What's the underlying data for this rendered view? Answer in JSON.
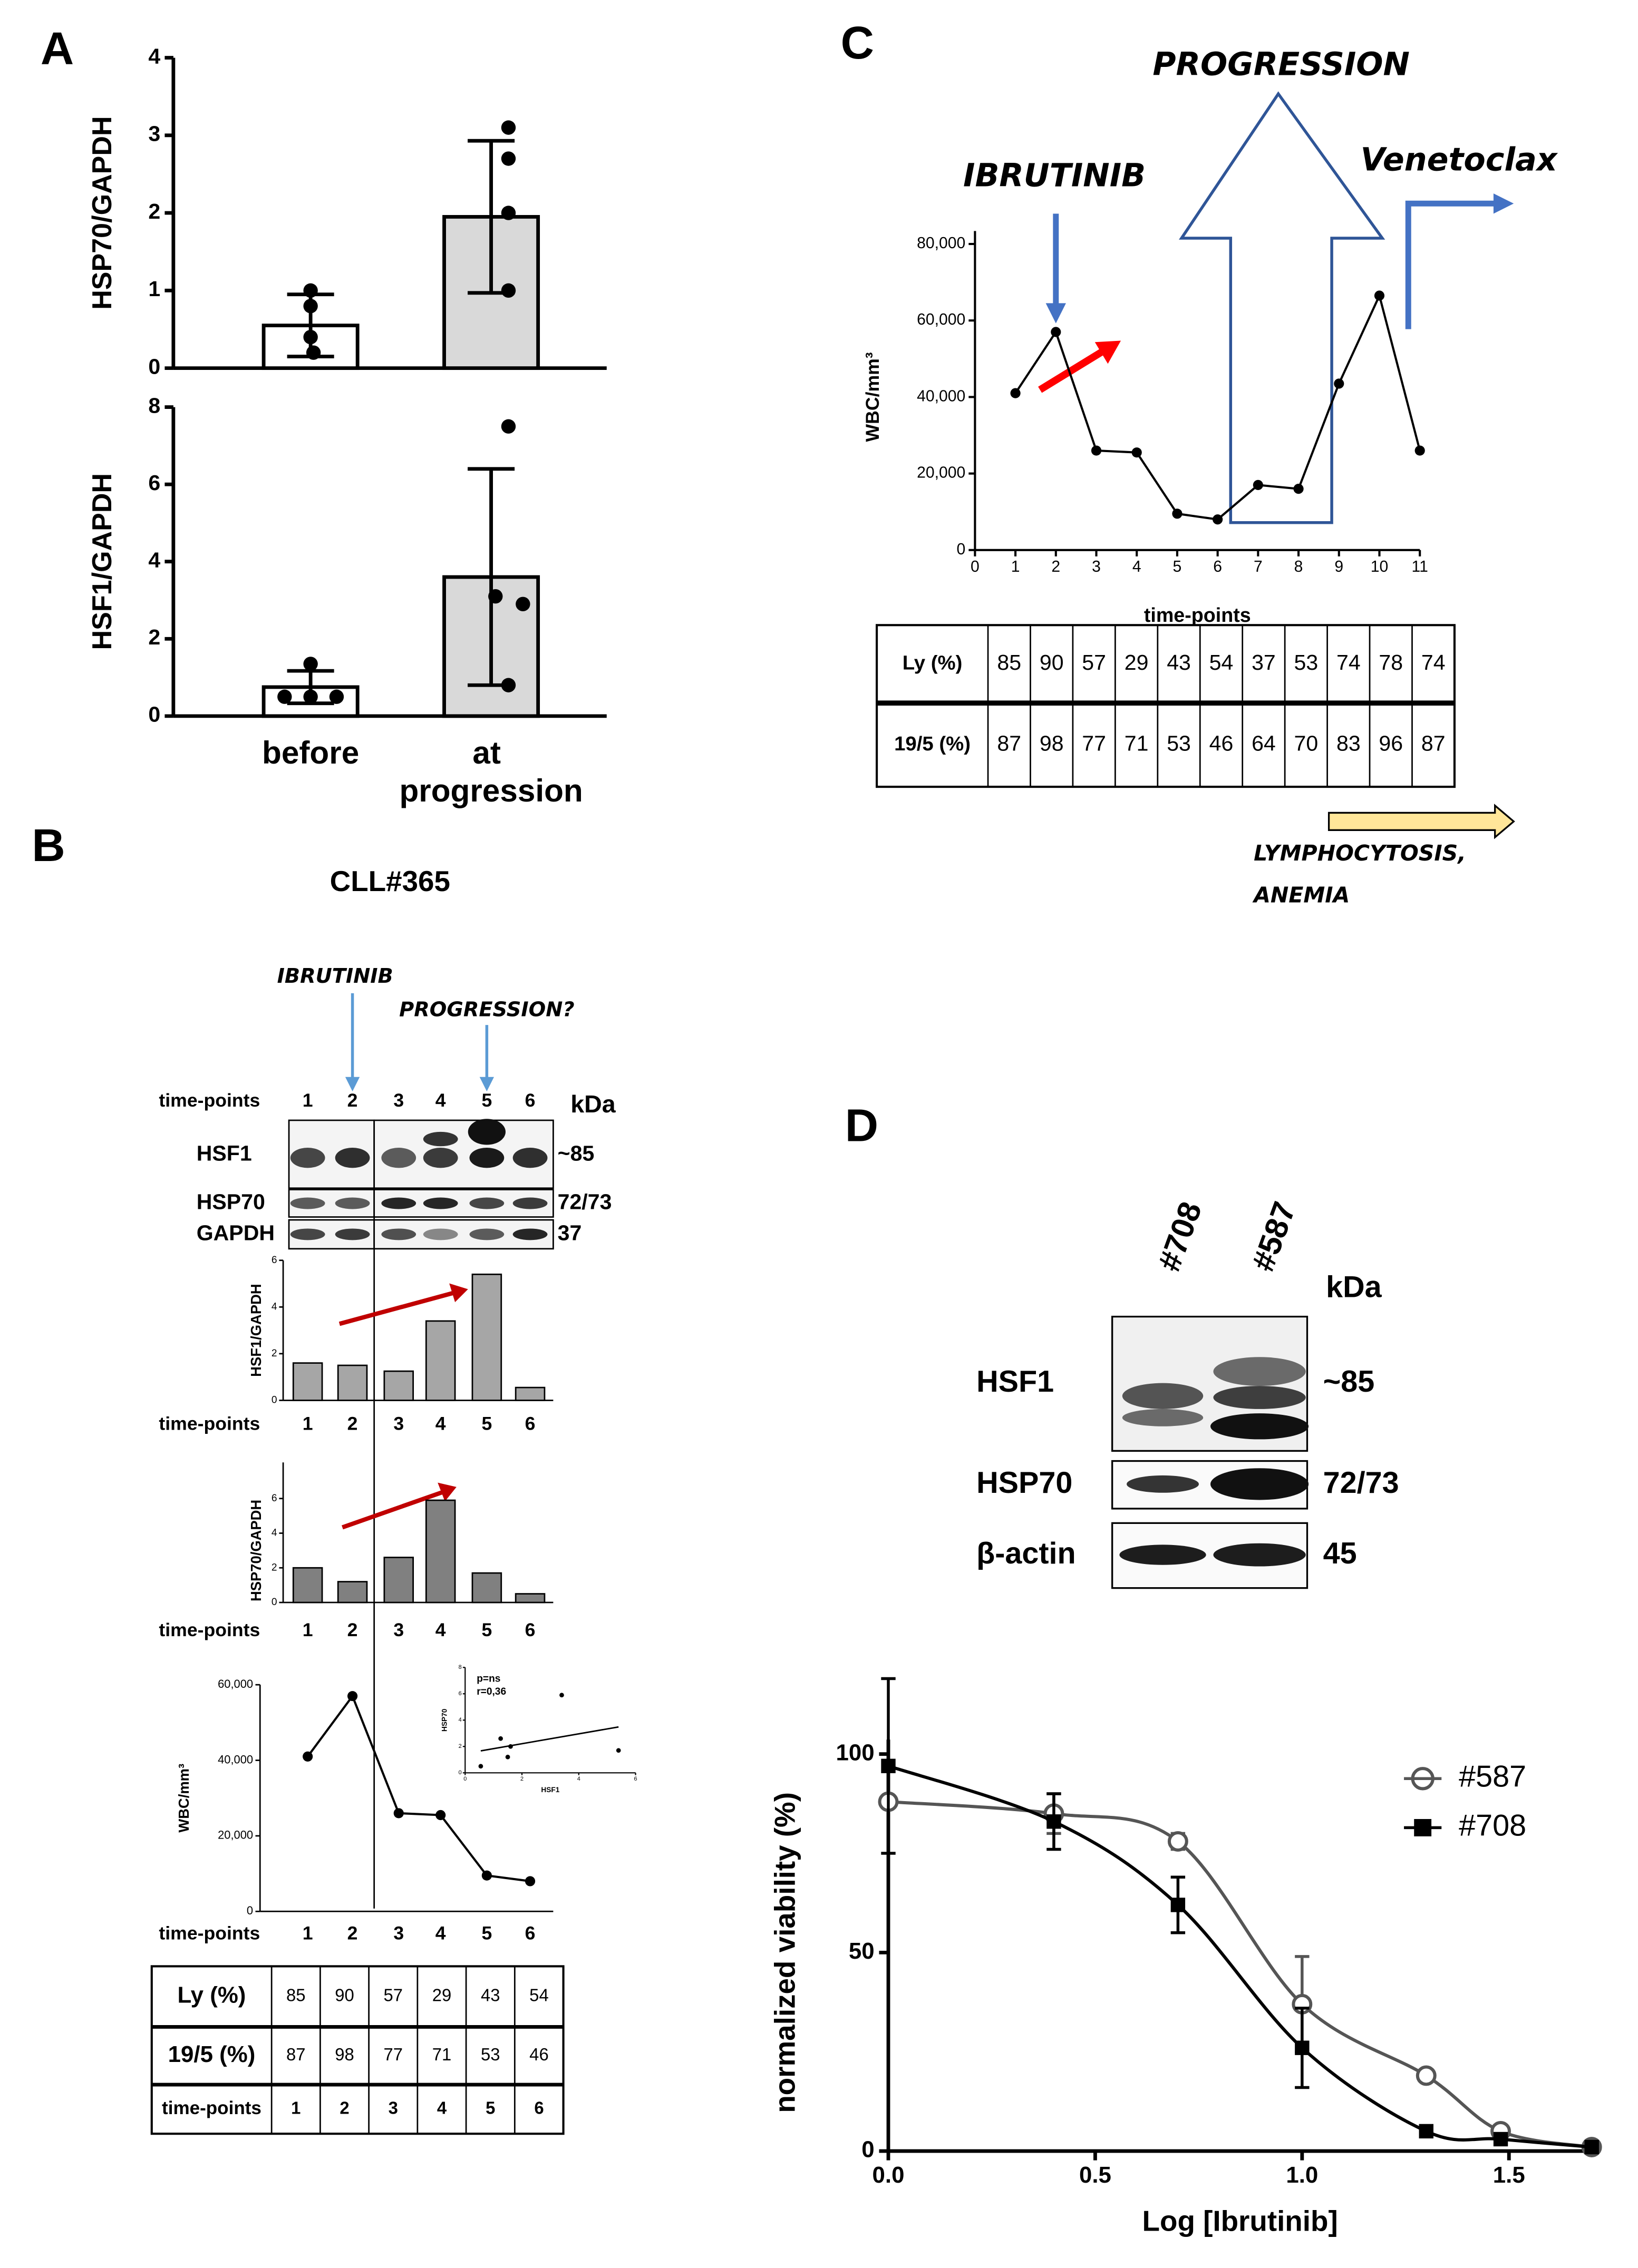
{
  "panels": {
    "a": "A",
    "b": "B",
    "c": "C",
    "d": "D"
  },
  "panel_b": {
    "title": "CLL#365",
    "annotations": [
      "IBRUTINIB",
      "PROGRESSION?"
    ],
    "blot": {
      "x_label": "time-points",
      "lanes": [
        "1",
        "2",
        "3",
        "4",
        "5",
        "6"
      ],
      "unit": "kDa",
      "rows": [
        {
          "label": "HSF1",
          "kda": "~85"
        },
        {
          "label": "HSP70",
          "kda": "72/73"
        },
        {
          "label": "GAPDH",
          "kda": "37"
        }
      ]
    },
    "table": {
      "rows": [
        [
          "Ly (%)",
          85,
          90,
          57,
          29,
          43,
          54
        ],
        [
          "19/5 (%)",
          87,
          98,
          77,
          71,
          53,
          46
        ],
        [
          "time-points",
          1,
          2,
          3,
          4,
          5,
          6
        ]
      ]
    }
  },
  "panel_c": {
    "annotations": [
      "IBRUTINIB",
      "PROGRESSION",
      "Venetoclax"
    ],
    "note": [
      "LYMPHOCYTOSIS,",
      "ANEMIA"
    ],
    "table": {
      "rows": [
        [
          "Ly (%)",
          85,
          90,
          57,
          29,
          43,
          54,
          37,
          53,
          74,
          78,
          74
        ],
        [
          "19/5 (%)",
          87,
          98,
          77,
          71,
          53,
          46,
          64,
          70,
          83,
          96,
          87
        ]
      ]
    }
  },
  "panel_d": {
    "blot": {
      "lanes": [
        "#708",
        "#587"
      ],
      "unit": "kDa",
      "rows": [
        {
          "label": "HSF1",
          "kda": "~85"
        },
        {
          "label": "HSP70",
          "kda": "72/73"
        },
        {
          "label": "β-actin",
          "kda": "45"
        }
      ]
    }
  },
  "chart_data": [
    {
      "type": "bar",
      "ylabel": "HSP70/GAPDH",
      "values": [
        0.55,
        1.95
      ],
      "errors": [
        0.4,
        0.98
      ],
      "points": [
        [
          1.0,
          0.8,
          0.4,
          0.2
        ],
        [
          3.1,
          2.7,
          2.0,
          1.0
        ]
      ],
      "colors": [
        "#ffffff",
        "#d9d9d9"
      ],
      "ylim": [
        0,
        4
      ],
      "yticks": [
        0,
        1,
        2,
        3,
        4
      ]
    },
    {
      "type": "bar",
      "ylabel": "HSF1/GAPDH",
      "categories": [
        "before",
        "at progression"
      ],
      "values": [
        0.75,
        3.6
      ],
      "errors": [
        0.42,
        2.8
      ],
      "points": [
        [
          1.35,
          0.5,
          0.5,
          0.5
        ],
        [
          7.5,
          3.1,
          2.9,
          0.8
        ]
      ],
      "colors": [
        "#ffffff",
        "#d9d9d9"
      ],
      "ylim": [
        0,
        8
      ],
      "yticks": [
        0,
        2,
        4,
        6,
        8
      ]
    },
    {
      "type": "line",
      "ylabel": "WBC/mm³",
      "xlabel": "time-points",
      "x": [
        1,
        2,
        3,
        4,
        5,
        6,
        7,
        8,
        9,
        10,
        11
      ],
      "values": [
        41000,
        57000,
        26000,
        25500,
        9500,
        8000,
        17000,
        16000,
        43500,
        66500,
        26000
      ],
      "color": "#000000",
      "xlim": [
        0,
        11
      ],
      "xticks": [
        0,
        1,
        2,
        3,
        4,
        5,
        6,
        7,
        8,
        9,
        10,
        11
      ],
      "ylim": [
        0,
        80000
      ],
      "yticks": [
        0,
        {
          "value": 20000,
          "label": "20,000"
        },
        {
          "value": 40000,
          "label": "40,000"
        },
        {
          "value": 60000,
          "label": "60,000"
        },
        {
          "value": 80000,
          "label": "80,000"
        }
      ]
    },
    {
      "type": "bar",
      "ylabel": "HSF1/GAPDH",
      "xlabel": "time-points",
      "categories": [
        "1",
        "2",
        "3",
        "4",
        "5",
        "6"
      ],
      "values": [
        1.6,
        1.5,
        1.25,
        3.4,
        5.4,
        0.55
      ],
      "color": "#a6a6a6",
      "ylim": [
        0,
        6
      ],
      "yticks": [
        0,
        2,
        4,
        6
      ]
    },
    {
      "type": "bar",
      "ylabel": "HSP70/GAPDH",
      "xlabel": "time-points",
      "categories": [
        "1",
        "2",
        "3",
        "4",
        "5",
        "6"
      ],
      "values": [
        2.0,
        1.2,
        2.6,
        5.9,
        1.7,
        0.5
      ],
      "color": "#808080",
      "ylim": [
        0,
        6
      ],
      "yticks": [
        0,
        2,
        4,
        6
      ]
    },
    {
      "type": "line",
      "ylabel": "WBC/mm³",
      "xlabel": "time-points",
      "categories": [
        "1",
        "2",
        "3",
        "4",
        "5",
        "6"
      ],
      "values": [
        41000,
        57000,
        26000,
        25500,
        9500,
        8000
      ],
      "color": "#000000",
      "ylim": [
        0,
        60000
      ],
      "yticks": [
        0,
        {
          "value": 20000,
          "label": "20,000"
        },
        {
          "value": 40000,
          "label": "40,000"
        },
        {
          "value": 60000,
          "label": "60,000"
        }
      ]
    },
    {
      "type": "scatter",
      "annotations": [
        "p=ns",
        "r=0,36"
      ],
      "xlabel": "HSF1",
      "ylabel": "HSP70",
      "x": [
        1.6,
        1.5,
        1.25,
        3.4,
        5.4,
        0.55
      ],
      "values": [
        2.0,
        1.2,
        2.6,
        5.9,
        1.7,
        0.5
      ],
      "xlim": [
        0,
        6
      ],
      "ylim": [
        0,
        8
      ],
      "xticks": [
        0,
        2,
        4,
        6
      ],
      "yticks": [
        0,
        2,
        4,
        6,
        8
      ]
    },
    {
      "type": "dose_response",
      "xlabel": "Log [Ibrutinib]",
      "ylabel": "normalized viability (%)",
      "x": [
        0,
        0.4,
        0.7,
        1.0,
        1.3,
        1.48,
        1.7
      ],
      "series": [
        {
          "name": "#587",
          "color": "#555555",
          "marker": "circle",
          "values": [
            88,
            85,
            78,
            37,
            19,
            5,
            1
          ],
          "errors": [
            0,
            5,
            2,
            12,
            0,
            0,
            0
          ]
        },
        {
          "name": "#708",
          "color": "#000000",
          "marker": "square",
          "values": [
            97,
            83,
            62,
            26,
            5,
            3,
            1
          ],
          "errors": [
            22,
            7,
            7,
            10,
            0,
            0,
            0
          ]
        }
      ],
      "xlim": [
        0,
        1.7
      ],
      "xticks": [
        {
          "value": 0,
          "label": "0.0"
        },
        0.5,
        {
          "value": 1,
          "label": "1.0"
        },
        1.5
      ],
      "ylim": [
        0,
        100
      ],
      "yticks": [
        0,
        50,
        100
      ]
    }
  ]
}
